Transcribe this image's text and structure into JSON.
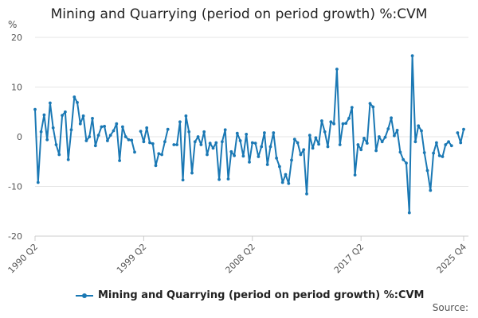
{
  "chart_data": {
    "type": "line",
    "title": "Mining and Quarrying (period on period growth) %:CVM",
    "ylabel": "%",
    "ylim": [
      -20,
      20
    ],
    "yticks": [
      -20,
      -10,
      0,
      10,
      20
    ],
    "x_start": "1990 Q2",
    "x_end": "2025 Q4",
    "x_step": "quarter",
    "xtick_labels": [
      "1990 Q2",
      "1999 Q2",
      "2008 Q2",
      "2017 Q2",
      "2025 Q4"
    ],
    "xtick_indices": [
      0,
      36,
      72,
      108,
      142
    ],
    "color": "#1a78b4",
    "series": [
      {
        "name": "Mining and Quarrying (period on period growth) %:CVM",
        "values": [
          5.5,
          -9.2,
          1.0,
          4.4,
          -0.6,
          6.8,
          1.8,
          -1.6,
          -3.6,
          4.3,
          5.0,
          -4.6,
          1.4,
          8.0,
          6.9,
          2.6,
          4.2,
          -0.8,
          0.0,
          3.7,
          -1.8,
          0.3,
          2.0,
          2.1,
          -0.8,
          0.3,
          1.2,
          2.6,
          -4.8,
          2.0,
          0.0,
          -0.6,
          -0.7,
          -3.1,
          null,
          1.1,
          -1.0,
          1.8,
          -1.2,
          -1.4,
          -5.8,
          -3.4,
          -3.6,
          -1.0,
          1.5,
          null,
          -1.6,
          -1.6,
          3.0,
          -8.7,
          4.2,
          1.0,
          -7.3,
          -1.0,
          0.0,
          -1.6,
          1.0,
          -3.6,
          -1.3,
          -2.3,
          -1.2,
          -8.6,
          -1.0,
          1.4,
          -8.5,
          -3.0,
          -3.8,
          0.7,
          -0.8,
          -3.9,
          0.5,
          -5.1,
          -1.2,
          -1.3,
          -4.0,
          -2.0,
          0.8,
          -5.6,
          -2.0,
          0.8,
          -4.3,
          -6.0,
          -9.2,
          -7.6,
          -9.4,
          -4.7,
          -0.5,
          -1.2,
          -3.6,
          -2.6,
          -11.5,
          0.3,
          -2.3,
          -0.2,
          -1.5,
          3.2,
          1.0,
          -2.0,
          3.0,
          2.6,
          13.6,
          -1.6,
          2.6,
          2.7,
          3.7,
          5.9,
          -7.7,
          -1.6,
          -2.6,
          -0.3,
          -1.3,
          6.7,
          6.0,
          -2.8,
          0.0,
          -1.0,
          -0.1,
          1.6,
          3.8,
          0.2,
          1.3,
          -3.1,
          -4.6,
          -5.3,
          -15.3,
          16.3,
          -1.0,
          2.2,
          1.2,
          -3.2,
          -6.8,
          -10.8,
          -3.3,
          -1.2,
          -3.8,
          -4.0,
          -1.6,
          -1.0,
          -1.8,
          null,
          0.8,
          -1.2,
          1.5
        ]
      }
    ]
  },
  "legend": {
    "label": "Mining and Quarrying (period on period growth) %:CVM"
  },
  "credits": "Source:"
}
